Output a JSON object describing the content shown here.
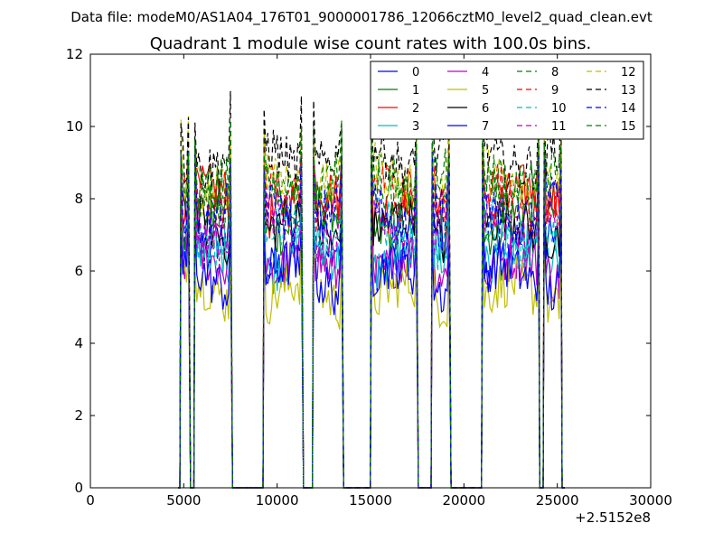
{
  "figure": {
    "suptitle": "Data file: modeM0/AS1A04_176T01_9000001786_12066cztM0_level2_quad_clean.evt",
    "title": "Quadrant 1 module wise count rates with 100.0s bins.",
    "offset_label": "+2.5152e8"
  },
  "chart_data": {
    "type": "line",
    "title": "Quadrant 1 module wise count rates with 100.0s bins.",
    "xlabel": "",
    "ylabel": "",
    "xlim": [
      0,
      30000
    ],
    "ylim": [
      0,
      12
    ],
    "x_offset": 251520000,
    "x_ticks": [
      0,
      5000,
      10000,
      15000,
      20000,
      25000,
      30000
    ],
    "y_ticks": [
      0,
      2,
      4,
      6,
      8,
      10,
      12
    ],
    "x_tick_labels": [
      "0",
      "5000",
      "10000",
      "15000",
      "20000",
      "25000",
      "30000"
    ],
    "y_tick_labels": [
      "0",
      "2",
      "4",
      "6",
      "8",
      "10",
      "12"
    ],
    "grid": false,
    "legend": {
      "placement": "top-right",
      "columns": 4
    },
    "segments": [
      [
        4850,
        5300
      ],
      [
        5600,
        7550
      ],
      [
        9300,
        11350
      ],
      [
        11950,
        13500
      ],
      [
        15050,
        17500
      ],
      [
        18300,
        19250
      ],
      [
        21000,
        24000
      ],
      [
        24300,
        25200
      ]
    ],
    "series": [
      {
        "name": "0",
        "color": "#0000ff",
        "dash": "solid",
        "level": 6.5
      },
      {
        "name": "1",
        "color": "#008000",
        "dash": "solid",
        "level": 7.4
      },
      {
        "name": "2",
        "color": "#ff0000",
        "dash": "solid",
        "level": 7.9
      },
      {
        "name": "3",
        "color": "#00bfbf",
        "dash": "solid",
        "level": 6.3
      },
      {
        "name": "4",
        "color": "#bf00bf",
        "dash": "solid",
        "level": 6.0
      },
      {
        "name": "5",
        "color": "#bfbf00",
        "dash": "solid",
        "level": 5.3
      },
      {
        "name": "6",
        "color": "#000000",
        "dash": "solid",
        "level": 7.1
      },
      {
        "name": "7",
        "color": "#0000ff",
        "dash": "solid",
        "level": 5.8
      },
      {
        "name": "8",
        "color": "#008000",
        "dash": "dashed",
        "level": 8.2
      },
      {
        "name": "9",
        "color": "#ff0000",
        "dash": "dashed",
        "level": 8.0
      },
      {
        "name": "10",
        "color": "#00bfbf",
        "dash": "dashed",
        "level": 7.0
      },
      {
        "name": "11",
        "color": "#bf00bf",
        "dash": "dashed",
        "level": 7.3
      },
      {
        "name": "12",
        "color": "#bfbf00",
        "dash": "dashed",
        "level": 8.6
      },
      {
        "name": "13",
        "color": "#000000",
        "dash": "dashed",
        "level": 9.2
      },
      {
        "name": "14",
        "color": "#0000ff",
        "dash": "dashed",
        "level": 7.7
      },
      {
        "name": "15",
        "color": "#008000",
        "dash": "dashed",
        "level": 8.4
      }
    ]
  }
}
